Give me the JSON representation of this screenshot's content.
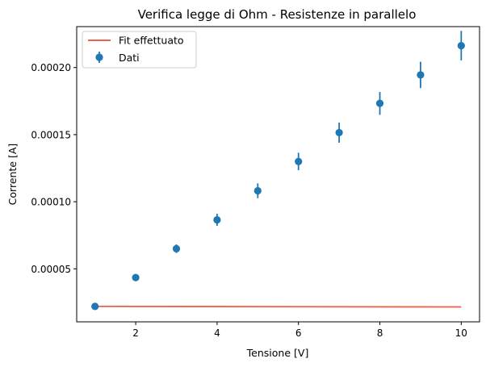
{
  "chart_data": {
    "type": "scatter",
    "title": "Verifica legge di Ohm - Resistenze in parallelo",
    "xlabel": "Tensione [V]",
    "ylabel": "Corrente [A]",
    "xlim": [
      0.55,
      10.45
    ],
    "ylim": [
      1.05e-05,
      0.0002305
    ],
    "xticks": [
      2,
      4,
      6,
      8,
      10
    ],
    "xtick_labels": [
      "2",
      "4",
      "6",
      "8",
      "10"
    ],
    "yticks": [
      5e-05,
      0.0001,
      0.00015,
      0.0002
    ],
    "ytick_labels": [
      "0.00005",
      "0.00010",
      "0.00015",
      "0.00020"
    ],
    "grid": false,
    "legend_position": "top-left",
    "series": [
      {
        "name": "Dati",
        "kind": "errorbar",
        "color": "#1f77b4",
        "x": [
          1,
          2,
          3,
          4,
          5,
          6,
          7,
          8,
          9,
          10
        ],
        "y": [
          2.2e-05,
          4.35e-05,
          6.5e-05,
          8.65e-05,
          0.0001082,
          0.00013,
          0.0001515,
          0.0001733,
          0.0001945,
          0.0002163
        ],
        "yerr": [
          1e-06,
          2e-06,
          3.2e-06,
          4.5e-06,
          5.5e-06,
          6.5e-06,
          7.5e-06,
          8.5e-06,
          9.8e-06,
          1.1e-05
        ]
      },
      {
        "name": "Fit effettuato",
        "kind": "line",
        "color": "#f0604a",
        "x": [
          1,
          10
        ],
        "y": [
          2.2e-05,
          2.16e-05
        ]
      }
    ]
  }
}
